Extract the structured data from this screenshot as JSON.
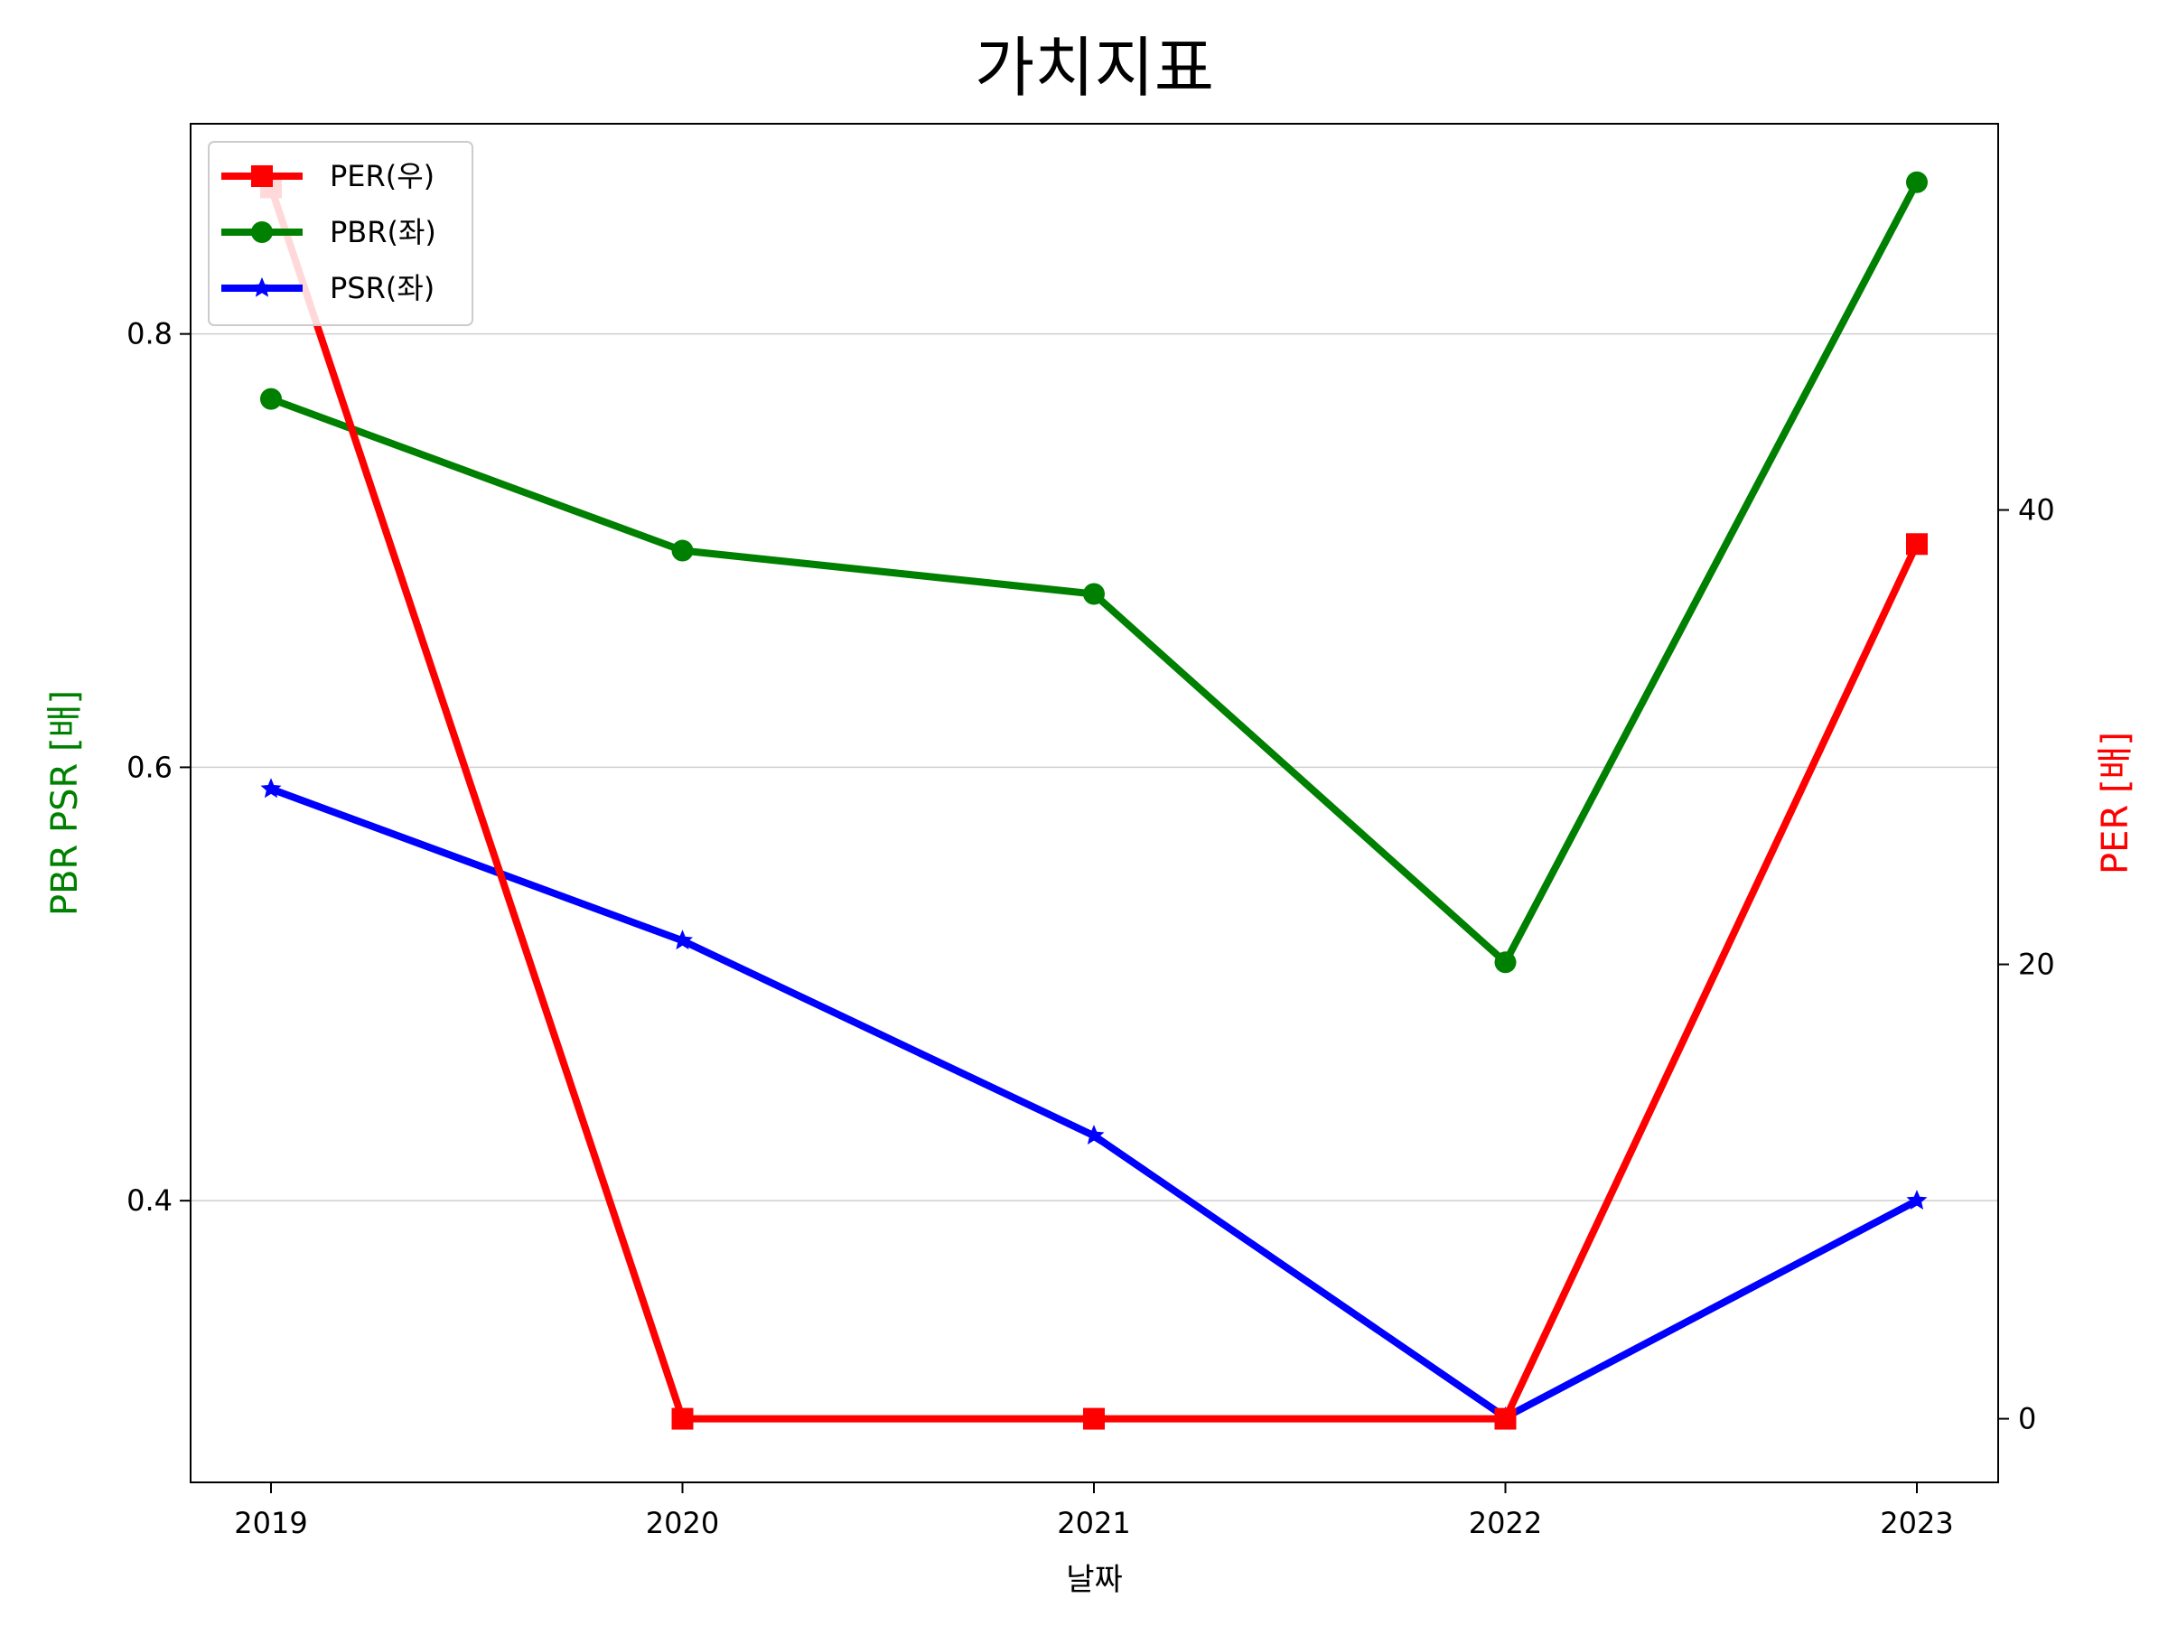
{
  "chart_data": {
    "type": "line",
    "title": "가치지표",
    "xlabel": "날짜",
    "ylabel_left": "PBR PSR [배]",
    "ylabel_right": "PER [배]",
    "x": [
      "2019",
      "2020",
      "2021",
      "2022",
      "2023"
    ],
    "left_ylim": [
      0.27,
      0.897
    ],
    "left_yticks": [
      0.4,
      0.6,
      0.8
    ],
    "left_ytick_labels": [
      "0.4",
      "0.6",
      "0.8"
    ],
    "right_ylim": [
      -2.8,
      57.0
    ],
    "right_yticks": [
      0,
      20,
      40
    ],
    "right_ytick_labels": [
      "0",
      "20",
      "40"
    ],
    "grid": "horizontal (left axis)",
    "legend_position": "upper-left",
    "series": [
      {
        "name": "PER(우)",
        "axis": "right",
        "color": "#ff0000",
        "marker": "square",
        "values": [
          54.2,
          0,
          0,
          0,
          38.5
        ]
      },
      {
        "name": "PBR(좌)",
        "axis": "left",
        "color": "#008000",
        "marker": "circle",
        "values": [
          0.77,
          0.7,
          0.68,
          0.51,
          0.87
        ]
      },
      {
        "name": "PSR(좌)",
        "axis": "left",
        "color": "#0000ff",
        "marker": "star",
        "values": [
          0.59,
          0.52,
          0.43,
          0.3,
          0.4
        ]
      }
    ]
  }
}
